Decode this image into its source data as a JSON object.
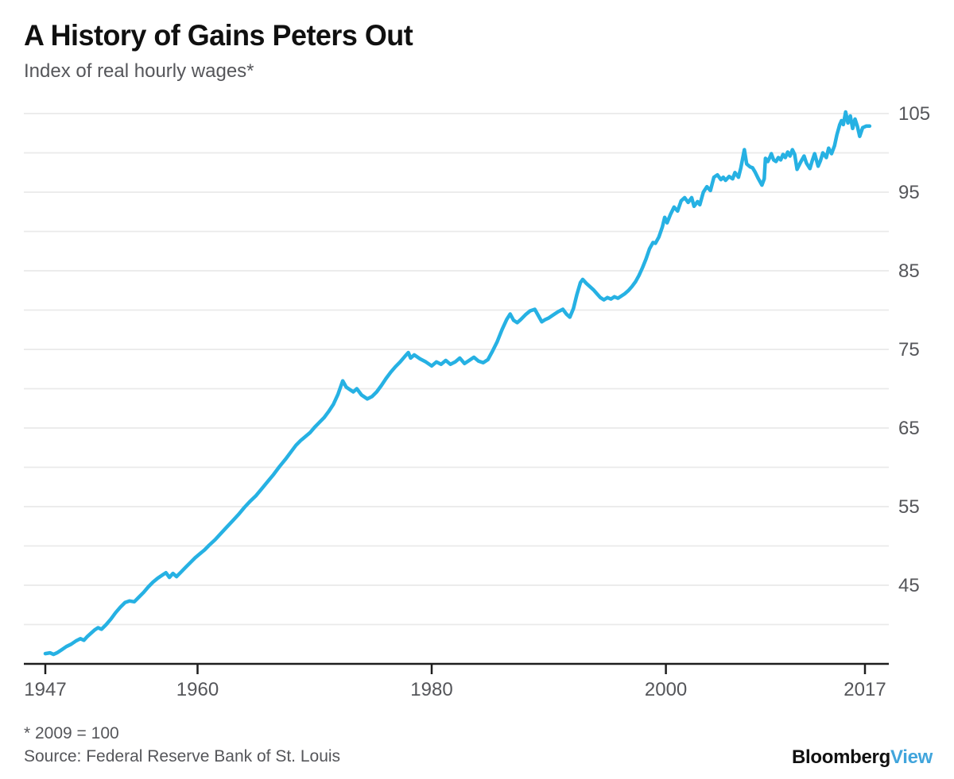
{
  "header": {
    "title": "A History of Gains Peters Out",
    "subtitle": "Index of real hourly wages*"
  },
  "footer": {
    "footnote": "* 2009 = 100",
    "source": "Source: Federal Reserve Bank of St. Louis",
    "logo": {
      "brand": "Bloomberg",
      "brand_suffix": "View"
    }
  },
  "colors": {
    "line": "#26b1e3",
    "grid": "#eaeaea",
    "axis": "#1e1e1e",
    "tick_label": "#55565a",
    "title": "#101010",
    "subtitle": "#55565a",
    "logo_view": "#41a5dc"
  },
  "chart_data": {
    "type": "line",
    "title": "A History of Gains Peters Out",
    "subtitle": "Index of real hourly wages*",
    "footnote": "* 2009 = 100",
    "source": "Source: Federal Reserve Bank of St. Louis",
    "xlabel": "",
    "ylabel": "",
    "x_tick_years": [
      1947,
      1960,
      1980,
      2000,
      2017
    ],
    "x_tick_labels": [
      "1947",
      "1960",
      "1980",
      "2000",
      "2017"
    ],
    "y_tick_values": [
      105,
      95,
      85,
      75,
      65,
      55,
      45
    ],
    "y_tick_labels": [
      "105",
      "95",
      "85",
      "75",
      "65",
      "55",
      "45"
    ],
    "grid_values": [
      40,
      45,
      50,
      55,
      60,
      65,
      70,
      75,
      80,
      85,
      90,
      95,
      100,
      105
    ],
    "x_range": [
      1947,
      2017.4
    ],
    "y_range": [
      35,
      106
    ],
    "grid": true,
    "legend_position": "none",
    "series": [
      {
        "name": "Index of real hourly wages (2009 = 100)",
        "points": [
          [
            1947.0,
            36.3
          ],
          [
            1947.4,
            36.4
          ],
          [
            1947.7,
            36.2
          ],
          [
            1948.0,
            36.4
          ],
          [
            1948.4,
            36.8
          ],
          [
            1948.8,
            37.2
          ],
          [
            1949.2,
            37.5
          ],
          [
            1949.6,
            37.9
          ],
          [
            1950.0,
            38.2
          ],
          [
            1950.3,
            38.0
          ],
          [
            1950.6,
            38.5
          ],
          [
            1950.9,
            38.9
          ],
          [
            1951.2,
            39.3
          ],
          [
            1951.5,
            39.6
          ],
          [
            1951.8,
            39.4
          ],
          [
            1952.2,
            40.0
          ],
          [
            1952.6,
            40.7
          ],
          [
            1953.0,
            41.5
          ],
          [
            1953.4,
            42.2
          ],
          [
            1953.8,
            42.8
          ],
          [
            1954.2,
            43.0
          ],
          [
            1954.6,
            42.9
          ],
          [
            1955.0,
            43.5
          ],
          [
            1955.4,
            44.1
          ],
          [
            1955.8,
            44.8
          ],
          [
            1956.2,
            45.4
          ],
          [
            1956.6,
            45.9
          ],
          [
            1957.0,
            46.3
          ],
          [
            1957.3,
            46.6
          ],
          [
            1957.6,
            46.0
          ],
          [
            1957.9,
            46.5
          ],
          [
            1958.2,
            46.1
          ],
          [
            1958.6,
            46.7
          ],
          [
            1959.0,
            47.3
          ],
          [
            1959.4,
            47.9
          ],
          [
            1959.8,
            48.5
          ],
          [
            1960.2,
            49.0
          ],
          [
            1960.6,
            49.5
          ],
          [
            1961.0,
            50.1
          ],
          [
            1961.5,
            50.8
          ],
          [
            1962.0,
            51.6
          ],
          [
            1962.5,
            52.4
          ],
          [
            1963.0,
            53.2
          ],
          [
            1963.5,
            54.0
          ],
          [
            1964.0,
            54.9
          ],
          [
            1964.5,
            55.7
          ],
          [
            1965.0,
            56.4
          ],
          [
            1965.5,
            57.3
          ],
          [
            1966.0,
            58.2
          ],
          [
            1966.5,
            59.1
          ],
          [
            1967.0,
            60.1
          ],
          [
            1967.5,
            61.0
          ],
          [
            1968.0,
            62.0
          ],
          [
            1968.4,
            62.8
          ],
          [
            1968.8,
            63.4
          ],
          [
            1969.2,
            63.9
          ],
          [
            1969.6,
            64.4
          ],
          [
            1970.0,
            65.1
          ],
          [
            1970.4,
            65.7
          ],
          [
            1970.8,
            66.3
          ],
          [
            1971.2,
            67.1
          ],
          [
            1971.6,
            68.0
          ],
          [
            1972.0,
            69.3
          ],
          [
            1972.4,
            71.0
          ],
          [
            1972.7,
            70.2
          ],
          [
            1973.0,
            69.9
          ],
          [
            1973.3,
            69.6
          ],
          [
            1973.6,
            70.0
          ],
          [
            1974.0,
            69.2
          ],
          [
            1974.5,
            68.7
          ],
          [
            1974.9,
            69.0
          ],
          [
            1975.3,
            69.6
          ],
          [
            1975.7,
            70.4
          ],
          [
            1976.1,
            71.3
          ],
          [
            1976.5,
            72.1
          ],
          [
            1976.9,
            72.8
          ],
          [
            1977.3,
            73.4
          ],
          [
            1977.7,
            74.1
          ],
          [
            1978.0,
            74.6
          ],
          [
            1978.2,
            73.9
          ],
          [
            1978.5,
            74.3
          ],
          [
            1979.0,
            73.8
          ],
          [
            1979.5,
            73.4
          ],
          [
            1980.0,
            72.9
          ],
          [
            1980.4,
            73.4
          ],
          [
            1980.8,
            73.1
          ],
          [
            1981.2,
            73.6
          ],
          [
            1981.6,
            73.1
          ],
          [
            1982.0,
            73.4
          ],
          [
            1982.4,
            73.9
          ],
          [
            1982.8,
            73.2
          ],
          [
            1983.2,
            73.6
          ],
          [
            1983.6,
            74.0
          ],
          [
            1984.0,
            73.5
          ],
          [
            1984.4,
            73.3
          ],
          [
            1984.8,
            73.7
          ],
          [
            1985.2,
            74.8
          ],
          [
            1985.6,
            76.0
          ],
          [
            1986.0,
            77.5
          ],
          [
            1986.4,
            78.8
          ],
          [
            1986.7,
            79.5
          ],
          [
            1987.0,
            78.7
          ],
          [
            1987.3,
            78.4
          ],
          [
            1987.6,
            78.8
          ],
          [
            1988.0,
            79.4
          ],
          [
            1988.4,
            79.9
          ],
          [
            1988.8,
            80.1
          ],
          [
            1989.1,
            79.3
          ],
          [
            1989.4,
            78.5
          ],
          [
            1989.7,
            78.8
          ],
          [
            1990.0,
            79.0
          ],
          [
            1990.4,
            79.4
          ],
          [
            1990.8,
            79.8
          ],
          [
            1991.2,
            80.1
          ],
          [
            1991.5,
            79.5
          ],
          [
            1991.8,
            79.1
          ],
          [
            1992.1,
            80.2
          ],
          [
            1992.4,
            82.0
          ],
          [
            1992.7,
            83.5
          ],
          [
            1992.9,
            83.9
          ],
          [
            1993.2,
            83.4
          ],
          [
            1993.5,
            83.0
          ],
          [
            1993.8,
            82.6
          ],
          [
            1994.1,
            82.1
          ],
          [
            1994.4,
            81.6
          ],
          [
            1994.7,
            81.3
          ],
          [
            1995.0,
            81.6
          ],
          [
            1995.3,
            81.4
          ],
          [
            1995.6,
            81.7
          ],
          [
            1995.9,
            81.5
          ],
          [
            1996.2,
            81.8
          ],
          [
            1996.5,
            82.1
          ],
          [
            1996.8,
            82.5
          ],
          [
            1997.1,
            83.0
          ],
          [
            1997.4,
            83.6
          ],
          [
            1997.7,
            84.4
          ],
          [
            1998.0,
            85.4
          ],
          [
            1998.3,
            86.5
          ],
          [
            1998.6,
            87.8
          ],
          [
            1998.9,
            88.6
          ],
          [
            1999.1,
            88.5
          ],
          [
            1999.4,
            89.3
          ],
          [
            1999.7,
            90.6
          ],
          [
            1999.9,
            91.8
          ],
          [
            2000.1,
            91.1
          ],
          [
            2000.4,
            92.2
          ],
          [
            2000.7,
            93.1
          ],
          [
            2001.0,
            92.6
          ],
          [
            2001.3,
            93.9
          ],
          [
            2001.6,
            94.3
          ],
          [
            2001.9,
            93.7
          ],
          [
            2002.2,
            94.3
          ],
          [
            2002.4,
            93.2
          ],
          [
            2002.7,
            93.8
          ],
          [
            2002.9,
            93.4
          ],
          [
            2003.2,
            95.0
          ],
          [
            2003.5,
            95.7
          ],
          [
            2003.8,
            95.2
          ],
          [
            2004.1,
            96.9
          ],
          [
            2004.4,
            97.2
          ],
          [
            2004.7,
            96.6
          ],
          [
            2004.9,
            96.9
          ],
          [
            2005.1,
            96.5
          ],
          [
            2005.4,
            97.0
          ],
          [
            2005.7,
            96.7
          ],
          [
            2005.9,
            97.5
          ],
          [
            2006.2,
            96.9
          ],
          [
            2006.4,
            98.1
          ],
          [
            2006.7,
            100.4
          ],
          [
            2006.9,
            98.6
          ],
          [
            2007.2,
            98.2
          ],
          [
            2007.4,
            98.1
          ],
          [
            2007.6,
            97.6
          ],
          [
            2007.9,
            96.7
          ],
          [
            2008.2,
            95.9
          ],
          [
            2008.4,
            96.7
          ],
          [
            2008.5,
            99.3
          ],
          [
            2008.7,
            98.9
          ],
          [
            2008.9,
            99.5
          ],
          [
            2009.0,
            99.9
          ],
          [
            2009.2,
            99.1
          ],
          [
            2009.4,
            98.9
          ],
          [
            2009.6,
            99.4
          ],
          [
            2009.8,
            99.1
          ],
          [
            2010.0,
            99.8
          ],
          [
            2010.2,
            99.4
          ],
          [
            2010.4,
            100.1
          ],
          [
            2010.6,
            99.6
          ],
          [
            2010.8,
            100.4
          ],
          [
            2011.0,
            99.8
          ],
          [
            2011.2,
            97.9
          ],
          [
            2011.5,
            98.8
          ],
          [
            2011.8,
            99.6
          ],
          [
            2012.0,
            98.7
          ],
          [
            2012.3,
            98.0
          ],
          [
            2012.5,
            99.0
          ],
          [
            2012.7,
            99.9
          ],
          [
            2013.0,
            98.3
          ],
          [
            2013.2,
            99.0
          ],
          [
            2013.4,
            100.0
          ],
          [
            2013.7,
            99.4
          ],
          [
            2013.9,
            100.6
          ],
          [
            2014.15,
            99.9
          ],
          [
            2014.4,
            100.9
          ],
          [
            2014.6,
            102.3
          ],
          [
            2014.85,
            103.6
          ],
          [
            2015.0,
            104.1
          ],
          [
            2015.15,
            103.6
          ],
          [
            2015.35,
            105.2
          ],
          [
            2015.55,
            103.8
          ],
          [
            2015.75,
            104.7
          ],
          [
            2015.95,
            103.1
          ],
          [
            2016.15,
            104.3
          ],
          [
            2016.35,
            103.4
          ],
          [
            2016.55,
            102.1
          ],
          [
            2016.8,
            103.2
          ],
          [
            2017.1,
            103.4
          ],
          [
            2017.4,
            103.4
          ]
        ]
      }
    ]
  }
}
